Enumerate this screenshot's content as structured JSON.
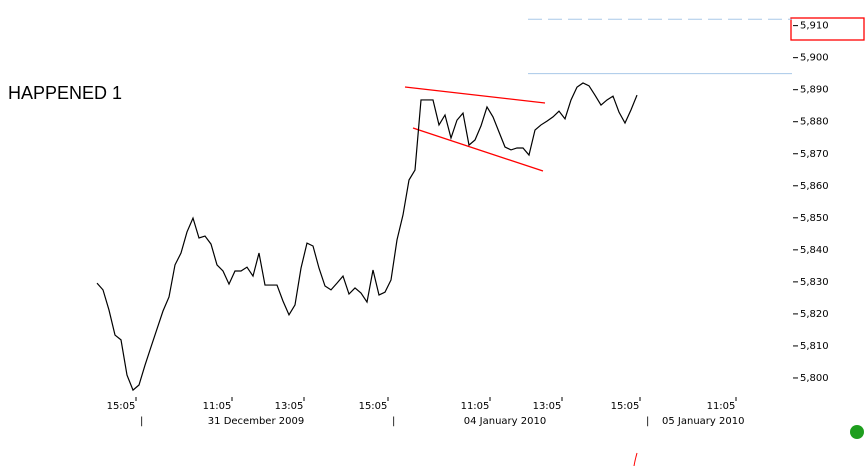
{
  "chart_data": {
    "type": "line",
    "annotation": "HAPPENED 1",
    "categories": [
      null,
      null,
      null,
      null,
      "15:05",
      null,
      null,
      null,
      null,
      null,
      null,
      null,
      null,
      null,
      null,
      null,
      null,
      null,
      null,
      null,
      "11:05",
      null,
      null,
      null,
      null,
      null,
      null,
      null,
      null,
      null,
      null,
      null,
      "13:05",
      null,
      null,
      null,
      null,
      null,
      null,
      null,
      null,
      null,
      null,
      null,
      null,
      null,
      "15:05",
      null,
      null,
      null,
      null,
      null,
      null,
      null,
      null,
      null,
      null,
      null,
      null,
      null,
      null,
      null,
      null,
      "11:05",
      null,
      null,
      null,
      null,
      null,
      null,
      null,
      null,
      null,
      null,
      null,
      "13:05",
      null,
      null,
      null,
      null,
      null,
      null,
      null,
      null,
      null,
      null,
      null,
      null,
      "15:05",
      null,
      null,
      null,
      null,
      null,
      null,
      null,
      null,
      null,
      null,
      null,
      null,
      null,
      null,
      null,
      "11:05"
    ],
    "values": [
      5829.6,
      5827.5,
      5821.2,
      5813.4,
      5811.9,
      5800.9,
      5796.2,
      5797.8,
      5804.0,
      5809.7,
      5815.3,
      5820.9,
      5825.3,
      5835.3,
      5839.0,
      5845.6,
      5849.9,
      5843.7,
      5844.3,
      5841.8,
      5835.3,
      5833.4,
      5829.3,
      5833.4,
      5833.4,
      5834.6,
      5831.8,
      5839.0,
      5829.0,
      5829.0,
      5829.0,
      5824.0,
      5819.7,
      5822.8,
      5834.3,
      5842.1,
      5841.2,
      5834.3,
      5828.7,
      5827.5,
      5829.6,
      5831.8,
      5826.2,
      5828.1,
      5826.5,
      5823.7,
      5833.7,
      5825.9,
      5826.8,
      5830.6,
      5843.1,
      5850.9,
      5861.8,
      5864.9,
      5886.8,
      5886.8,
      5886.8,
      5879.0,
      5882.1,
      5874.9,
      5880.5,
      5882.7,
      5872.7,
      5874.3,
      5878.7,
      5884.6,
      5881.5,
      5876.8,
      5872.1,
      5871.2,
      5871.8,
      5871.8,
      5869.6,
      5877.4,
      5879.0,
      5880.2,
      5881.5,
      5883.3,
      5880.9,
      5886.8,
      5890.8,
      5892.1,
      5891.2,
      5888.3,
      5885.2,
      5886.8,
      5888.0,
      5883.0,
      5879.6,
      5883.7,
      5888.3,
      null,
      null,
      null,
      null,
      null,
      null,
      null,
      null,
      null,
      null,
      null,
      null,
      null,
      null
    ],
    "color": "#000000",
    "date_labels": [
      "31 December 2009",
      "04 January 2010",
      "05 January 2010"
    ],
    "ylim": [
      5790,
      5918
    ],
    "yticks": [
      {
        "value": 5800,
        "label": "5,800"
      },
      {
        "value": 5810,
        "label": "5,810"
      },
      {
        "value": 5820,
        "label": "5,820"
      },
      {
        "value": 5830,
        "label": "5,830"
      },
      {
        "value": 5840,
        "label": "5,840"
      },
      {
        "value": 5850,
        "label": "5,850"
      },
      {
        "value": 5860,
        "label": "5,860"
      },
      {
        "value": 5870,
        "label": "5,870"
      },
      {
        "value": 5880,
        "label": "5,880"
      },
      {
        "value": 5890,
        "label": "5,890"
      },
      {
        "value": 5900,
        "label": "5,900"
      },
      {
        "value": 5910,
        "label": "5,910"
      }
    ],
    "reference_lines": [
      {
        "value": 5912,
        "style": "dashed",
        "color": "#a8c8e8"
      },
      {
        "value": 5895,
        "style": "solid",
        "color": "#a8c8e8"
      }
    ]
  }
}
